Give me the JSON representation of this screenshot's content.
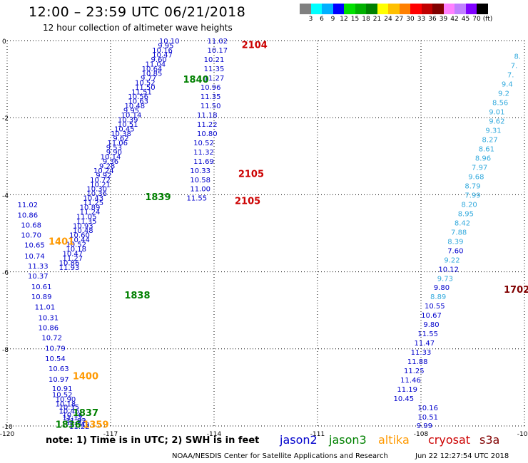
{
  "header": {
    "title": "12:00 – 23:59 UTC 06/21/2018",
    "subtitle": "12 hour collection of altimeter wave heights"
  },
  "legend": {
    "colors": [
      "#808080",
      "#00ffff",
      "#00b0ff",
      "#0000ff",
      "#00e000",
      "#00b000",
      "#008000",
      "#ffff00",
      "#ffc000",
      "#ff8000",
      "#ff0000",
      "#c00000",
      "#800000",
      "#ff80ff",
      "#c080ff",
      "#8000ff",
      "#000000"
    ],
    "labels": [
      "3",
      "6",
      "9",
      "12",
      "15",
      "18",
      "21",
      "24",
      "27",
      "30",
      "33",
      "36",
      "39",
      "42",
      "45",
      "70",
      "(ft)"
    ]
  },
  "colors": {
    "jason2": "#0000cc",
    "jason3": "#008000",
    "altika": "#ff9900",
    "cryosat": "#cc0000",
    "s3a": "#800000",
    "s3a_light": "#33aadd"
  },
  "chart_data": {
    "type": "scatter",
    "xlim": [
      -120,
      -105
    ],
    "ylim": [
      -10,
      0
    ],
    "x_ticks": [
      "-120",
      "-117",
      "-114",
      "-111",
      "-108",
      "-105"
    ],
    "y_ticks": [
      "0",
      "-2",
      "-4",
      "-6",
      "-8",
      "-10"
    ],
    "jason2_left_col": {
      "x": [
        -119.7,
        -119.7,
        -119.6,
        -119.6,
        -119.5,
        -119.5,
        -119.4,
        -119.4,
        -119.3,
        -119.3,
        -119.2,
        -119.1,
        -119.1,
        -119.0,
        -118.9,
        -118.9,
        -118.8,
        -118.8,
        -118.7,
        -118.7,
        -118.6,
        -118.6,
        -118.5,
        -118.5,
        -118.4,
        -118.4,
        -118.3,
        -118.3,
        -118.2,
        -118.2
      ],
      "y": [
        -4.25,
        -4.52,
        -4.78,
        -5.04,
        -5.3,
        -5.58,
        -5.84,
        -6.1,
        -6.38,
        -6.64,
        -6.9,
        -7.18,
        -7.44,
        -7.7,
        -7.98,
        -8.24,
        -8.5,
        -8.78,
        -9.02,
        -9.18,
        -9.3,
        -9.42,
        -9.5,
        -9.6,
        -9.7,
        -9.78,
        -9.85,
        -9.9,
        -9.96,
        -10.0
      ],
      "labels": [
        "11.02",
        "10.86",
        "10.68",
        "10.70",
        "10.65",
        "10.74",
        "11.33",
        "10.37",
        "10.61",
        "10.89",
        "11.01",
        "10.31",
        "10.86",
        "10.72",
        "10.79",
        "10.54",
        "10.63",
        "10.97",
        "10.91",
        "10.52",
        "10.90",
        "10.18",
        "10.35",
        "10.46",
        "10.16",
        "11.11",
        "11.92",
        "11.87",
        "11.48",
        "11.22"
      ]
    },
    "jason2_mid_col": {
      "x": [
        -115.3,
        -115.4,
        -115.5,
        -115.5,
        -115.6,
        -115.7,
        -115.8,
        -115.8,
        -115.9,
        -116.0,
        -116.0,
        -116.1,
        -116.2,
        -116.2,
        -116.3,
        -116.4,
        -116.4,
        -116.5,
        -116.5,
        -116.6,
        -116.7,
        -116.7,
        -116.8,
        -116.9,
        -116.9,
        -117.0,
        -117.0,
        -117.1,
        -117.2,
        -117.2,
        -117.3,
        -117.3,
        -117.4,
        -117.4,
        -117.5,
        -117.5,
        -117.6,
        -117.6,
        -117.7,
        -117.7,
        -117.8,
        -117.8,
        -117.9,
        -117.9,
        -118.0,
        -118.0,
        -118.1,
        -118.1,
        -118.2,
        -118.2
      ],
      "y": [
        0.0,
        -0.12,
        -0.24,
        -0.36,
        -0.48,
        -0.6,
        -0.72,
        -0.84,
        -0.96,
        -1.08,
        -1.2,
        -1.32,
        -1.44,
        -1.56,
        -1.68,
        -1.8,
        -1.92,
        -2.04,
        -2.16,
        -2.28,
        -2.4,
        -2.52,
        -2.64,
        -2.76,
        -2.88,
        -3.0,
        -3.12,
        -3.24,
        -3.36,
        -3.48,
        -3.6,
        -3.72,
        -3.84,
        -3.96,
        -4.08,
        -4.2,
        -4.32,
        -4.44,
        -4.56,
        -4.68,
        -4.8,
        -4.92,
        -5.04,
        -5.16,
        -5.28,
        -5.4,
        -5.52,
        -5.64,
        -5.76,
        -5.88
      ],
      "labels": [
        "10.10",
        "9.95",
        "10.16",
        "10.47",
        "9.60",
        "11.04",
        "10.64",
        "10.85",
        "9.77",
        "10.52",
        "11.50",
        "11.51",
        "10.56",
        "10.63",
        "10.48",
        "9.95",
        "10.14",
        "10.39",
        "10.51",
        "10.45",
        "10.38",
        "9.62",
        "11.06",
        "9.53",
        "9.90",
        "10.14",
        "9.36",
        "9.28",
        "10.24",
        "9.92",
        "10.72",
        "10.21",
        "10.30",
        "10.36",
        "10.43",
        "11.25",
        "10.89",
        "11.24",
        "11.05",
        "11.35",
        "10.93",
        "10.48",
        "10.60",
        "10.44",
        "10.52",
        "10.18",
        "10.47",
        "11.27",
        "10.86",
        "11.93"
      ]
    },
    "jason2_right_col": {
      "x": [
        -113.9,
        -113.9,
        -114.0,
        -114.0,
        -114.0,
        -114.1,
        -114.1,
        -114.1,
        -114.2,
        -114.2,
        -114.2,
        -114.3,
        -114.3,
        -114.3,
        -114.4,
        -114.4,
        -114.4,
        -114.5
      ],
      "y": [
        0.0,
        -0.24,
        -0.48,
        -0.72,
        -0.96,
        -1.2,
        -1.44,
        -1.68,
        -1.92,
        -2.16,
        -2.4,
        -2.64,
        -2.88,
        -3.12,
        -3.36,
        -3.6,
        -3.84,
        -4.08
      ],
      "labels": [
        "11.02",
        "10.17",
        "10.21",
        "11.35",
        "11.27",
        "10.96",
        "11.35",
        "11.50",
        "11.18",
        "11.22",
        "10.80",
        "10.52",
        "11.32",
        "11.69",
        "10.33",
        "10.58",
        "11.00",
        "11.55"
      ]
    },
    "s3a_right_col": {
      "x": [
        -105.2,
        -105.3,
        -105.4,
        -105.5,
        -105.6,
        -105.7,
        -105.8,
        -105.8,
        -105.9,
        -106.0,
        -106.1,
        -106.2,
        -106.3,
        -106.4,
        -106.5,
        -106.5,
        -106.6,
        -106.7,
        -106.8,
        -106.9,
        -107.0,
        -107.0,
        -107.1,
        -107.2,
        -107.3,
        -107.4,
        -107.5,
        -107.6,
        -107.7,
        -107.7,
        -107.8,
        -107.9,
        -108.0,
        -108.1,
        -108.2,
        -108.3,
        -108.4,
        -108.5
      ],
      "y": [
        -0.4,
        -0.64,
        -0.88,
        -1.12,
        -1.36,
        -1.6,
        -1.84,
        -2.08,
        -2.32,
        -2.56,
        -2.8,
        -3.04,
        -3.28,
        -3.52,
        -3.76,
        -4.0,
        -4.24,
        -4.48,
        -4.72,
        -4.96,
        -5.2,
        -5.44,
        -5.68,
        -5.92,
        -6.16,
        -6.4,
        -6.64,
        -6.88,
        -7.12,
        -7.36,
        -7.6,
        -7.84,
        -8.08,
        -8.32,
        -8.56,
        -8.8,
        -9.04,
        -9.28
      ],
      "labels": [
        "8.",
        "7.",
        "7.",
        "9.4",
        "9.2",
        "8.56",
        "9.01",
        "9.62",
        "9.31",
        "8.27",
        "8.61",
        "8.96",
        "7.97",
        "9.68",
        "8.79",
        "7.99",
        "8.20",
        "8.95",
        "8.42",
        "7.88",
        "8.39",
        "7.60",
        "9.22",
        "10.12",
        "9.73",
        "9.80",
        "8.89",
        "10.55",
        "10.67",
        "9.80",
        "11.55",
        "11.47",
        "11.33",
        "11.88",
        "11.25",
        "11.46",
        "11.19",
        "10.45"
      ]
    },
    "time_labels": [
      {
        "text": "2104",
        "x": -113.2,
        "y": -0.1,
        "sat": "cryosat"
      },
      {
        "text": "1840",
        "x": -114.9,
        "y": -1.0,
        "sat": "jason3"
      },
      {
        "text": "2105",
        "x": -113.3,
        "y": -3.45,
        "sat": "cryosat"
      },
      {
        "text": "1839",
        "x": -116.0,
        "y": -4.05,
        "sat": "jason3"
      },
      {
        "text": "2105",
        "x": -113.4,
        "y": -4.15,
        "sat": "cryosat"
      },
      {
        "text": "1401",
        "x": -118.8,
        "y": -5.2,
        "sat": "altika"
      },
      {
        "text": "1838",
        "x": -116.6,
        "y": -6.6,
        "sat": "jason3"
      },
      {
        "text": "1702",
        "x": -105.6,
        "y": -6.45,
        "sat": "s3a"
      },
      {
        "text": "1400",
        "x": -118.1,
        "y": -8.7,
        "sat": "altika"
      },
      {
        "text": "1837",
        "x": -118.1,
        "y": -9.65,
        "sat": "jason3"
      },
      {
        "text": "1836",
        "x": -118.6,
        "y": -9.95,
        "sat": "jason3"
      },
      {
        "text": "1359",
        "x": -117.8,
        "y": -9.95,
        "sat": "altika"
      }
    ],
    "extra_points": [
      {
        "text": "10.16",
        "x": -107.8,
        "y": -9.52
      },
      {
        "text": "10.51",
        "x": -107.8,
        "y": -9.76
      },
      {
        "text": "9.99",
        "x": -107.9,
        "y": -9.98
      }
    ]
  },
  "footer": {
    "note": "note:  1) Time is in UTC;  2) SWH is in feet",
    "sat_jason2": "jason2",
    "sat_jason3": "jason3",
    "sat_altika": "altika",
    "sat_cryosat": "cryosat",
    "sat_s3a": "s3a",
    "credit": "NOAA/NESDIS Center for Satellite Applications and Research",
    "timestamp": "Jun 22 12:27:54 UTC 2018"
  }
}
